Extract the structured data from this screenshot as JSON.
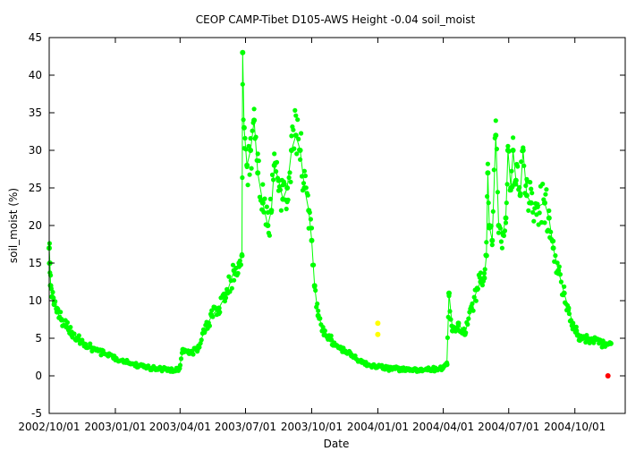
{
  "chart_data": {
    "type": "scatter",
    "title": "CEOP CAMP-Tibet D105-AWS Height -0.04 soil_moist",
    "xlabel": "Date",
    "ylabel": "soil_moist (%)",
    "x_type": "date",
    "xlim": [
      "2002-10-01",
      "2004-12-10"
    ],
    "ylim": [
      -5,
      45
    ],
    "y_ticks": [
      -5,
      0,
      5,
      10,
      15,
      20,
      25,
      30,
      35,
      40,
      45
    ],
    "x_ticks": [
      {
        "date": "2002-10-01",
        "label": "2002/10/01"
      },
      {
        "date": "2003-01-01",
        "label": "2003/01/01"
      },
      {
        "date": "2003-04-01",
        "label": "2003/04/01"
      },
      {
        "date": "2003-07-01",
        "label": "2003/07/01"
      },
      {
        "date": "2003-10-01",
        "label": "2003/10/01"
      },
      {
        "date": "2004-01-01",
        "label": "2004/01/01"
      },
      {
        "date": "2004-04-01",
        "label": "2004/04/01"
      },
      {
        "date": "2004-07-01",
        "label": "2004/07/01"
      },
      {
        "date": "2004-10-01",
        "label": "2004/10/01"
      }
    ],
    "grid": false,
    "legend": "none",
    "series": [
      {
        "color": "#00ff00",
        "connected": true,
        "points": [
          [
            "2002-10-01",
            17.0
          ],
          [
            "2002-10-02",
            15.0
          ],
          [
            "2002-10-03",
            12.0
          ],
          [
            "2002-10-05",
            10.5
          ],
          [
            "2002-10-08",
            9.5
          ],
          [
            "2002-10-12",
            8.5
          ],
          [
            "2002-10-18",
            7.5
          ],
          [
            "2002-10-25",
            6.5
          ],
          [
            "2002-11-01",
            5.8
          ],
          [
            "2002-11-10",
            5.0
          ],
          [
            "2002-11-20",
            4.2
          ],
          [
            "2002-12-01",
            3.6
          ],
          [
            "2002-12-15",
            3.0
          ],
          [
            "2003-01-01",
            2.3
          ],
          [
            "2003-01-20",
            1.7
          ],
          [
            "2003-02-10",
            1.2
          ],
          [
            "2003-03-01",
            0.9
          ],
          [
            "2003-03-20",
            0.8
          ],
          [
            "2003-03-31",
            1.0
          ],
          [
            "2003-04-05",
            3.5
          ],
          [
            "2003-04-15",
            3.0
          ],
          [
            "2003-04-25",
            3.5
          ],
          [
            "2003-05-05",
            6.0
          ],
          [
            "2003-05-15",
            8.0
          ],
          [
            "2003-05-25",
            9.0
          ],
          [
            "2003-06-05",
            11.0
          ],
          [
            "2003-06-15",
            14.0
          ],
          [
            "2003-06-22",
            15.0
          ],
          [
            "2003-06-26",
            16.0
          ],
          [
            "2003-06-27",
            43.0
          ],
          [
            "2003-06-29",
            33.0
          ],
          [
            "2003-07-03",
            28.0
          ],
          [
            "2003-07-08",
            30.0
          ],
          [
            "2003-07-13",
            34.0
          ],
          [
            "2003-07-18",
            27.0
          ],
          [
            "2003-07-25",
            23.0
          ],
          [
            "2003-08-01",
            20.0
          ],
          [
            "2003-08-06",
            22.0
          ],
          [
            "2003-08-10",
            28.0
          ],
          [
            "2003-08-16",
            26.0
          ],
          [
            "2003-08-22",
            23.5
          ],
          [
            "2003-08-28",
            25.0
          ],
          [
            "2003-09-03",
            30.0
          ],
          [
            "2003-09-09",
            32.0
          ],
          [
            "2003-09-15",
            30.0
          ],
          [
            "2003-09-21",
            25.0
          ],
          [
            "2003-09-27",
            22.0
          ],
          [
            "2003-10-01",
            18.0
          ],
          [
            "2003-10-05",
            12.0
          ],
          [
            "2003-10-10",
            8.0
          ],
          [
            "2003-10-18",
            6.0
          ],
          [
            "2003-10-28",
            4.8
          ],
          [
            "2003-11-10",
            3.8
          ],
          [
            "2003-11-25",
            2.8
          ],
          [
            "2003-12-10",
            1.8
          ],
          [
            "2003-12-25",
            1.3
          ],
          [
            "2004-01-15",
            1.0
          ],
          [
            "2004-02-10",
            0.8
          ],
          [
            "2004-03-10",
            0.8
          ],
          [
            "2004-03-31",
            1.0
          ],
          [
            "2004-04-06",
            1.5
          ],
          [
            "2004-04-09",
            11.0
          ],
          [
            "2004-04-14",
            6.0
          ],
          [
            "2004-04-22",
            7.0
          ],
          [
            "2004-05-01",
            5.5
          ],
          [
            "2004-05-10",
            9.0
          ],
          [
            "2004-05-18",
            11.5
          ],
          [
            "2004-05-23",
            12.5
          ],
          [
            "2004-05-28",
            13.0
          ],
          [
            "2004-05-31",
            16.0
          ],
          [
            "2004-06-02",
            27.0
          ],
          [
            "2004-06-04",
            20.0
          ],
          [
            "2004-06-08",
            18.0
          ],
          [
            "2004-06-13",
            32.0
          ],
          [
            "2004-06-17",
            20.0
          ],
          [
            "2004-06-23",
            19.0
          ],
          [
            "2004-06-27",
            21.0
          ],
          [
            "2004-06-30",
            30.0
          ],
          [
            "2004-07-04",
            25.0
          ],
          [
            "2004-07-07",
            30.0
          ],
          [
            "2004-07-11",
            26.0
          ],
          [
            "2004-07-17",
            24.0
          ],
          [
            "2004-07-21",
            30.0
          ],
          [
            "2004-07-26",
            24.0
          ],
          [
            "2004-08-01",
            23.0
          ],
          [
            "2004-08-10",
            22.5
          ],
          [
            "2004-08-20",
            23.0
          ],
          [
            "2004-08-26",
            21.0
          ],
          [
            "2004-09-01",
            17.0
          ],
          [
            "2004-09-08",
            14.0
          ],
          [
            "2004-09-16",
            11.0
          ],
          [
            "2004-09-22",
            9.0
          ],
          [
            "2004-09-28",
            7.0
          ],
          [
            "2004-10-03",
            6.0
          ],
          [
            "2004-10-08",
            5.0
          ],
          [
            "2004-10-20",
            4.9
          ],
          [
            "2004-11-05",
            4.5
          ],
          [
            "2004-11-12",
            4.0
          ],
          [
            "2004-11-20",
            4.3
          ]
        ]
      },
      {
        "color": "#ffff00",
        "connected": false,
        "points": [
          [
            "2004-01-01",
            7.0
          ],
          [
            "2004-01-01",
            5.5
          ]
        ]
      },
      {
        "color": "#ff0000",
        "connected": false,
        "points": [
          [
            "2004-11-16",
            0.0
          ]
        ]
      }
    ]
  }
}
